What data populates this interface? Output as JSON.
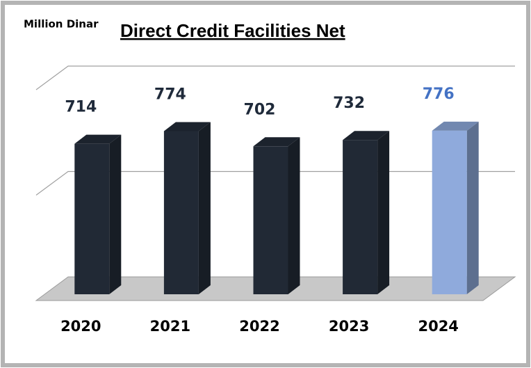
{
  "chart_data": {
    "type": "bar3d",
    "title": "Direct Credit Facilities Net",
    "unit_label": "Million Dinar",
    "categories": [
      "2020",
      "2021",
      "2022",
      "2023",
      "2024"
    ],
    "values": [
      714,
      774,
      702,
      732,
      776
    ],
    "colors": [
      "#212935",
      "#212935",
      "#212935",
      "#212935",
      "#8faadc"
    ],
    "label_colors": [
      "#1f2a3a",
      "#1f2a3a",
      "#1f2a3a",
      "#1f2a3a",
      "#4472c4"
    ],
    "ylim": [
      0,
      1000
    ],
    "yticks": [
      0,
      500,
      1000
    ],
    "grid": true
  }
}
